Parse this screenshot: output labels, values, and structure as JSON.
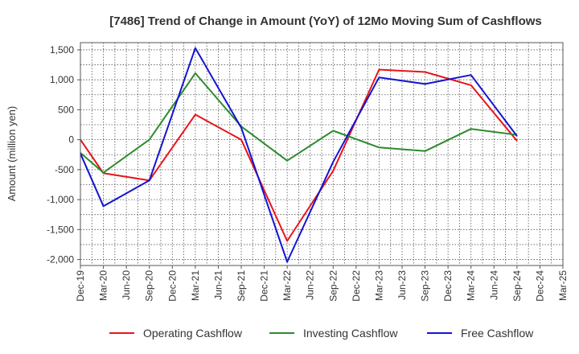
{
  "chart_data": {
    "type": "line",
    "title": "[7486]  Trend of Change in Amount (YoY) of 12Mo Moving Sum of Cashflows",
    "xlabel": "",
    "ylabel": "Amount (million yen)",
    "ylim": [
      -2100,
      1620
    ],
    "yticks": [
      1500,
      1000,
      500,
      0,
      -500,
      -1000,
      -1500,
      -2000
    ],
    "ytick_labels": [
      "1,500",
      "1,000",
      "500",
      "0",
      "-500",
      "-1,000",
      "-1,500",
      "-2,000"
    ],
    "categories": [
      "Dec-19",
      "Mar-20",
      "Jun-20",
      "Sep-20",
      "Dec-20",
      "Mar-21",
      "Jun-21",
      "Sep-21",
      "Dec-21",
      "Mar-22",
      "Jun-22",
      "Sep-22",
      "Dec-22",
      "Mar-23",
      "Jun-23",
      "Sep-23",
      "Dec-23",
      "Mar-24",
      "Jun-24",
      "Sep-24",
      "Dec-24",
      "Mar-25"
    ],
    "grid": true,
    "legend_position": "bottom",
    "series": [
      {
        "name": "Operating Cashflow",
        "color": "#e8141b",
        "values": [
          0,
          -560,
          null,
          -680,
          null,
          420,
          null,
          0,
          null,
          -1690,
          null,
          -520,
          null,
          1170,
          null,
          1130,
          null,
          910,
          null,
          -20,
          null,
          null
        ]
      },
      {
        "name": "Investing Cashflow",
        "color": "#2e8b2e",
        "values": [
          -220,
          -550,
          null,
          0,
          null,
          1110,
          null,
          220,
          null,
          -350,
          null,
          150,
          null,
          -130,
          null,
          -190,
          null,
          180,
          null,
          80,
          null,
          null
        ]
      },
      {
        "name": "Free Cashflow",
        "color": "#1414d2",
        "values": [
          -230,
          -1110,
          null,
          -680,
          null,
          1530,
          null,
          200,
          null,
          -2040,
          null,
          -370,
          null,
          1040,
          null,
          930,
          null,
          1080,
          null,
          60,
          null,
          null
        ]
      }
    ]
  }
}
